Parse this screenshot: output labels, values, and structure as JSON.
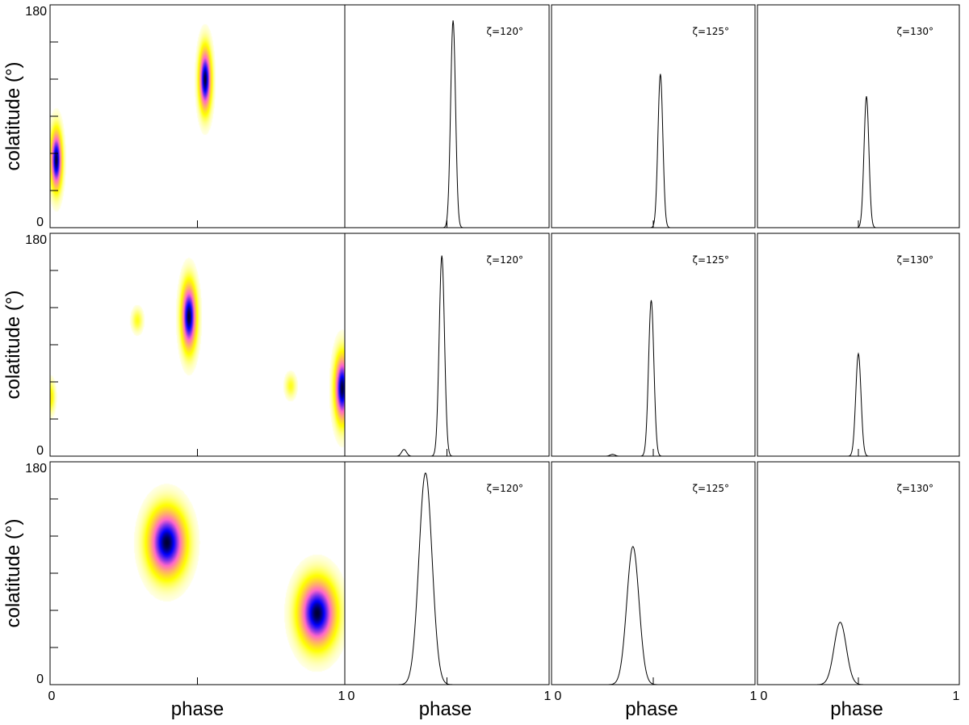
{
  "chart_data": {
    "type": "heatmap",
    "layout": {
      "rows": 3,
      "cols": 4
    },
    "axes": {
      "map": {
        "xlabel": "phase",
        "ylabel": "colatitude (°)",
        "xlim": [
          0,
          1
        ],
        "ylim": [
          0,
          180
        ],
        "xtick_labels": [
          "0",
          "1"
        ],
        "ytick_labels": [
          "0",
          "180"
        ]
      },
      "profile": {
        "xlabel": "phase",
        "xlim": [
          0,
          1
        ],
        "xtick_labels": [
          "0",
          "1"
        ]
      }
    },
    "colormap": [
      "#ffffff",
      "#ffff00",
      "#ff66cc",
      "#0000ff",
      "#000033"
    ],
    "rows": [
      {
        "map_spots": [
          {
            "phase": 0.02,
            "colatitude": 55,
            "sigma_phase": 0.012,
            "sigma_colat": 15,
            "amp": 1.0
          },
          {
            "phase": 0.525,
            "colatitude": 120,
            "sigma_phase": 0.013,
            "sigma_colat": 16,
            "amp": 1.0
          }
        ],
        "profiles": [
          {
            "label": "ζ=120°",
            "peak_phase": 0.53,
            "amplitude": 0.93,
            "width": 0.012
          },
          {
            "label": "ζ=125°",
            "peak_phase": 0.535,
            "amplitude": 0.69,
            "width": 0.012
          },
          {
            "label": "ζ=130°",
            "peak_phase": 0.54,
            "amplitude": 0.59,
            "width": 0.012
          }
        ]
      },
      {
        "map_spots": [
          {
            "phase": 0.47,
            "colatitude": 113,
            "sigma_phase": 0.016,
            "sigma_colat": 17,
            "amp": 1.0
          },
          {
            "phase": 0.99,
            "colatitude": 55,
            "sigma_phase": 0.016,
            "sigma_colat": 17,
            "amp": 1.0
          },
          {
            "phase": 0.295,
            "colatitude": 110,
            "sigma_phase": 0.012,
            "sigma_colat": 6,
            "amp": 0.18
          },
          {
            "phase": 0.815,
            "colatitude": 57,
            "sigma_phase": 0.012,
            "sigma_colat": 6,
            "amp": 0.18
          },
          {
            "phase": 0.0,
            "colatitude": 48,
            "sigma_phase": 0.01,
            "sigma_colat": 8,
            "amp": 0.25
          }
        ],
        "profiles": [
          {
            "label": "ζ=120°",
            "peak_phase": 0.475,
            "amplitude": 0.9,
            "width": 0.013,
            "sub_peak_phase": 0.29,
            "sub_amplitude": 0.03
          },
          {
            "label": "ζ=125°",
            "peak_phase": 0.49,
            "amplitude": 0.7,
            "width": 0.013,
            "sub_peak_phase": 0.3,
            "sub_amplitude": 0.008
          },
          {
            "label": "ζ=130°",
            "peak_phase": 0.5,
            "amplitude": 0.46,
            "width": 0.013
          }
        ]
      },
      {
        "map_spots": [
          {
            "phase": 0.395,
            "colatitude": 115,
            "sigma_phase": 0.04,
            "sigma_colat": 17,
            "amp": 1.0
          },
          {
            "phase": 0.905,
            "colatitude": 58,
            "sigma_phase": 0.04,
            "sigma_colat": 17,
            "amp": 1.0
          }
        ],
        "profiles": [
          {
            "label": "ζ=120°",
            "peak_phase": 0.395,
            "amplitude": 0.95,
            "width": 0.032
          },
          {
            "label": "ζ=125°",
            "peak_phase": 0.4,
            "amplitude": 0.62,
            "width": 0.03
          },
          {
            "label": "ζ=130°",
            "peak_phase": 0.41,
            "amplitude": 0.28,
            "width": 0.03
          }
        ]
      }
    ]
  }
}
